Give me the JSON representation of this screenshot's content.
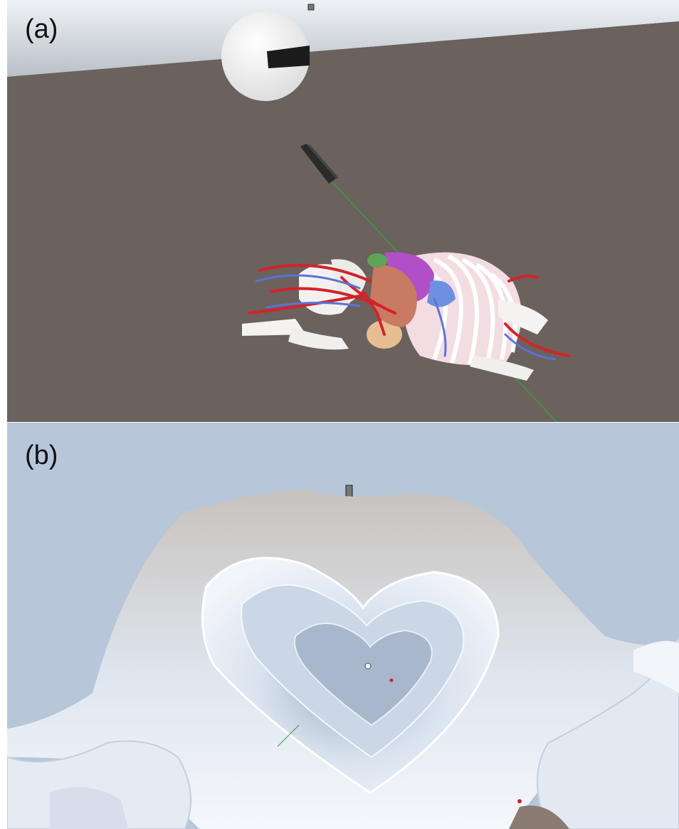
{
  "figure": {
    "panels": [
      {
        "label": "(a)"
      },
      {
        "label": "(b)"
      }
    ]
  },
  "colors": {
    "ground": "#6b615d",
    "sky_horizon": "#c9d4de",
    "head_sphere": "#ffffff",
    "headset": "#1b1b1b",
    "controller": "#2a2a2a",
    "laser_pointer": "#3c9c3c",
    "artery": "#d2232a",
    "vein": "#5b73d6",
    "bone": "#f4f3f2",
    "liver": "#c97a62",
    "stomach": "#b14fc8",
    "panel_b_sky": "#b7c6d8",
    "tissue_surface": "#dfe6ef"
  },
  "icons": [
    "head-sphere-icon",
    "vr-headset-icon",
    "controller-icon",
    "laser-pointer-icon",
    "gizmo-icon"
  ]
}
